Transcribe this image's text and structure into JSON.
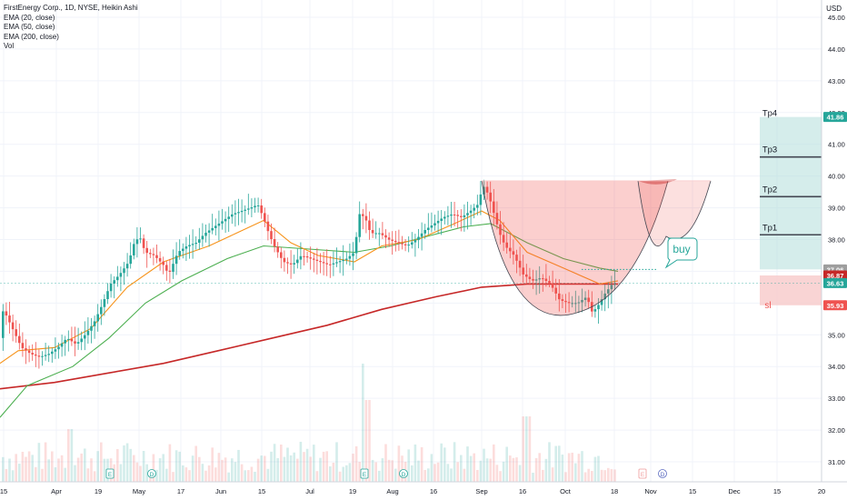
{
  "legend": {
    "line1": "FirstEnergy Corp., 1D, NYSE, Heikin Ashi",
    "line2": "EMA (20, close)",
    "line3": "EMA (50, close)",
    "line4": "EMA (200, close)",
    "line5": "Vol"
  },
  "currency": "USD",
  "colors": {
    "up": "#26a69a",
    "down": "#ef5350",
    "ema20": "#f7931a",
    "ema50": "#4caf50",
    "ema200": "#c62828",
    "green_zone": "#b2dfdb",
    "red_zone": "#f8c9c9"
  },
  "chart_data": {
    "type": "candlestick",
    "y_axis_ticks": [
      "45.00",
      "44.00",
      "43.00",
      "42.00",
      "41.00",
      "40.00",
      "39.00",
      "38.00",
      "37.00",
      "36.00",
      "35.00",
      "34.00",
      "33.00",
      "32.00",
      "31.00"
    ],
    "ylim": [
      30.4,
      45.4
    ],
    "x_axis_ticks": [
      "15",
      "Apr",
      "19",
      "May",
      "17",
      "Jun",
      "15",
      "Jul",
      "19",
      "Aug",
      "16",
      "Sep",
      "16",
      "Oct",
      "18",
      "Nov",
      "15",
      "Dec",
      "15",
      "20"
    ],
    "price_labels": [
      {
        "label": "Tp4",
        "value": 41.86,
        "text": "41.86",
        "color": "#26a69a"
      },
      {
        "label": "Tp3",
        "value": 40.6,
        "text": "",
        "color": ""
      },
      {
        "label": "Tp2",
        "value": 39.35,
        "text": "",
        "color": ""
      },
      {
        "label": "Tp1",
        "value": 38.15,
        "text": "",
        "color": ""
      },
      {
        "label": "",
        "value": 37.06,
        "text": "37.06",
        "color": "#9e9e9e"
      },
      {
        "label": "",
        "value": 36.87,
        "text": "36.87",
        "color": "#c62828"
      },
      {
        "label": "",
        "value": 36.63,
        "text": "36.63",
        "color": "#26a69a"
      },
      {
        "label": "sl",
        "value": 35.93,
        "text": "35.93",
        "color": "#ef5350"
      }
    ],
    "annotation": "buy",
    "earnings_markers": [
      "E",
      "D",
      "E",
      "D",
      "E",
      "D"
    ],
    "price_points": [
      [
        0,
        34.9
      ],
      [
        6,
        35.8
      ],
      [
        16,
        35.2
      ],
      [
        26,
        34.6
      ],
      [
        36,
        34.4
      ],
      [
        46,
        34.3
      ],
      [
        56,
        34.4
      ],
      [
        66,
        34.6
      ],
      [
        76,
        34.9
      ],
      [
        86,
        34.7
      ],
      [
        96,
        35.0
      ],
      [
        106,
        35.4
      ],
      [
        114,
        35.9
      ],
      [
        124,
        36.6
      ],
      [
        134,
        36.9
      ],
      [
        144,
        37.3
      ],
      [
        150,
        37.9
      ],
      [
        156,
        38.1
      ],
      [
        162,
        37.6
      ],
      [
        172,
        37.5
      ],
      [
        182,
        37.2
      ],
      [
        188,
        36.9
      ],
      [
        198,
        37.6
      ],
      [
        208,
        37.8
      ],
      [
        218,
        37.9
      ],
      [
        228,
        38.2
      ],
      [
        238,
        38.4
      ],
      [
        248,
        38.6
      ],
      [
        258,
        38.8
      ],
      [
        268,
        38.9
      ],
      [
        278,
        39.0
      ],
      [
        286,
        39.1
      ],
      [
        292,
        38.7
      ],
      [
        298,
        38.2
      ],
      [
        304,
        37.8
      ],
      [
        314,
        37.3
      ],
      [
        324,
        37.2
      ],
      [
        334,
        37.5
      ],
      [
        344,
        37.4
      ],
      [
        354,
        37.3
      ],
      [
        364,
        37.2
      ],
      [
        374,
        37.3
      ],
      [
        384,
        37.4
      ],
      [
        392,
        37.6
      ],
      [
        398,
        38.8
      ],
      [
        404,
        38.7
      ],
      [
        410,
        38.2
      ],
      [
        420,
        38.2
      ],
      [
        430,
        38.0
      ],
      [
        440,
        37.9
      ],
      [
        450,
        37.8
      ],
      [
        460,
        38.0
      ],
      [
        470,
        38.3
      ],
      [
        480,
        38.5
      ],
      [
        490,
        38.7
      ],
      [
        500,
        38.8
      ],
      [
        510,
        38.7
      ],
      [
        520,
        38.9
      ],
      [
        528,
        39.1
      ],
      [
        534,
        39.7
      ],
      [
        540,
        39.4
      ],
      [
        546,
        38.8
      ],
      [
        552,
        38.2
      ],
      [
        558,
        37.8
      ],
      [
        568,
        37.5
      ],
      [
        578,
        36.9
      ],
      [
        588,
        36.7
      ],
      [
        598,
        36.8
      ],
      [
        608,
        36.6
      ],
      [
        618,
        36.1
      ],
      [
        628,
        36.0
      ],
      [
        638,
        36.0
      ],
      [
        648,
        36.2
      ],
      [
        654,
        35.7
      ],
      [
        660,
        35.9
      ],
      [
        668,
        36.3
      ],
      [
        676,
        36.6
      ]
    ],
    "ema20": [
      [
        0,
        34.1
      ],
      [
        20,
        34.5
      ],
      [
        60,
        34.6
      ],
      [
        100,
        35.2
      ],
      [
        140,
        36.5
      ],
      [
        180,
        37.3
      ],
      [
        230,
        37.8
      ],
      [
        260,
        38.2
      ],
      [
        290,
        38.6
      ],
      [
        320,
        37.9
      ],
      [
        350,
        37.5
      ],
      [
        390,
        37.3
      ],
      [
        420,
        37.8
      ],
      [
        460,
        38.0
      ],
      [
        500,
        38.5
      ],
      [
        530,
        38.9
      ],
      [
        550,
        38.6
      ],
      [
        580,
        37.6
      ],
      [
        620,
        37.1
      ],
      [
        660,
        36.6
      ],
      [
        680,
        36.7
      ]
    ],
    "ema50": [
      [
        0,
        32.4
      ],
      [
        30,
        33.4
      ],
      [
        80,
        34.0
      ],
      [
        120,
        34.9
      ],
      [
        160,
        36.0
      ],
      [
        200,
        36.7
      ],
      [
        250,
        37.4
      ],
      [
        290,
        37.8
      ],
      [
        340,
        37.7
      ],
      [
        390,
        37.6
      ],
      [
        430,
        37.8
      ],
      [
        470,
        38.1
      ],
      [
        510,
        38.4
      ],
      [
        540,
        38.5
      ],
      [
        580,
        37.9
      ],
      [
        620,
        37.4
      ],
      [
        660,
        37.1
      ],
      [
        680,
        37.0
      ]
    ],
    "ema200": [
      [
        0,
        33.3
      ],
      [
        60,
        33.5
      ],
      [
        120,
        33.8
      ],
      [
        180,
        34.1
      ],
      [
        240,
        34.5
      ],
      [
        300,
        34.9
      ],
      [
        360,
        35.3
      ],
      [
        420,
        35.8
      ],
      [
        480,
        36.2
      ],
      [
        530,
        36.5
      ],
      [
        580,
        36.6
      ],
      [
        640,
        36.6
      ],
      [
        680,
        36.6
      ]
    ],
    "volume_max": 1.0
  }
}
